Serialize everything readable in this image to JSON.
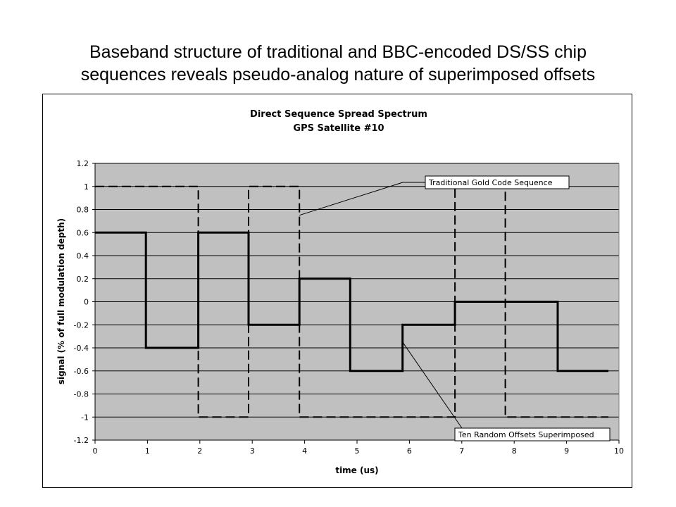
{
  "slide": {
    "title_line1": "Baseband structure of traditional and BBC-encoded DS/SS chip",
    "title_line2": "sequences reveals pseudo-analog nature of superimposed offsets"
  },
  "chart_data": {
    "type": "line",
    "title_line1": "Direct Sequence Spread Spectrum",
    "title_line2": "GPS Satellite #10",
    "xlabel": "time (us)",
    "ylabel": "signal  (% of full modulation depth)",
    "xlim": [
      0,
      10
    ],
    "ylim": [
      -1.2,
      1.2
    ],
    "x_ticks": [
      "0",
      "1",
      "2",
      "3",
      "4",
      "5",
      "6",
      "7",
      "8",
      "9",
      "10"
    ],
    "y_ticks": [
      "1.2",
      "1",
      "0.8",
      "0.6",
      "0.4",
      "0.2",
      "0",
      "-0.2",
      "-0.4",
      "-0.6",
      "-0.8",
      "-1",
      "-1.2"
    ],
    "y_tick_values": [
      1.2,
      1,
      0.8,
      0.6,
      0.4,
      0.2,
      0,
      -0.2,
      -0.4,
      -0.6,
      -0.8,
      -1,
      -1.2
    ],
    "grid": "horizontal",
    "plot_background": "#c0c0c0",
    "series": [
      {
        "name": "Traditional Gold Code Sequence",
        "style": "dashed",
        "x": [
          0,
          1.97,
          1.97,
          2.93,
          2.93,
          3.9,
          3.9,
          6.87,
          6.87,
          7.83,
          7.83,
          9.8
        ],
        "y": [
          1,
          1,
          -1,
          -1,
          1,
          1,
          -1,
          -1,
          1,
          1,
          -1,
          -1
        ]
      },
      {
        "name": "Ten Random Offsets Superimposed",
        "style": "solid",
        "x": [
          0,
          0.97,
          0.97,
          1.97,
          1.97,
          2.93,
          2.93,
          3.9,
          3.9,
          4.87,
          4.87,
          5.87,
          5.87,
          6.87,
          6.87,
          8.83,
          8.83,
          9.8
        ],
        "y": [
          0.6,
          0.6,
          -0.4,
          -0.4,
          0.6,
          0.6,
          -0.2,
          -0.2,
          0.2,
          0.2,
          -0.6,
          -0.6,
          -0.2,
          -0.2,
          0,
          0,
          -0.6,
          -0.6
        ]
      }
    ],
    "annotations": [
      {
        "text": "Traditional Gold Code Sequence",
        "points_to": [
          3.9,
          0.75
        ]
      },
      {
        "text": "Ten Random Offsets Superimposed",
        "points_to": [
          5.87,
          -0.35
        ]
      }
    ]
  }
}
